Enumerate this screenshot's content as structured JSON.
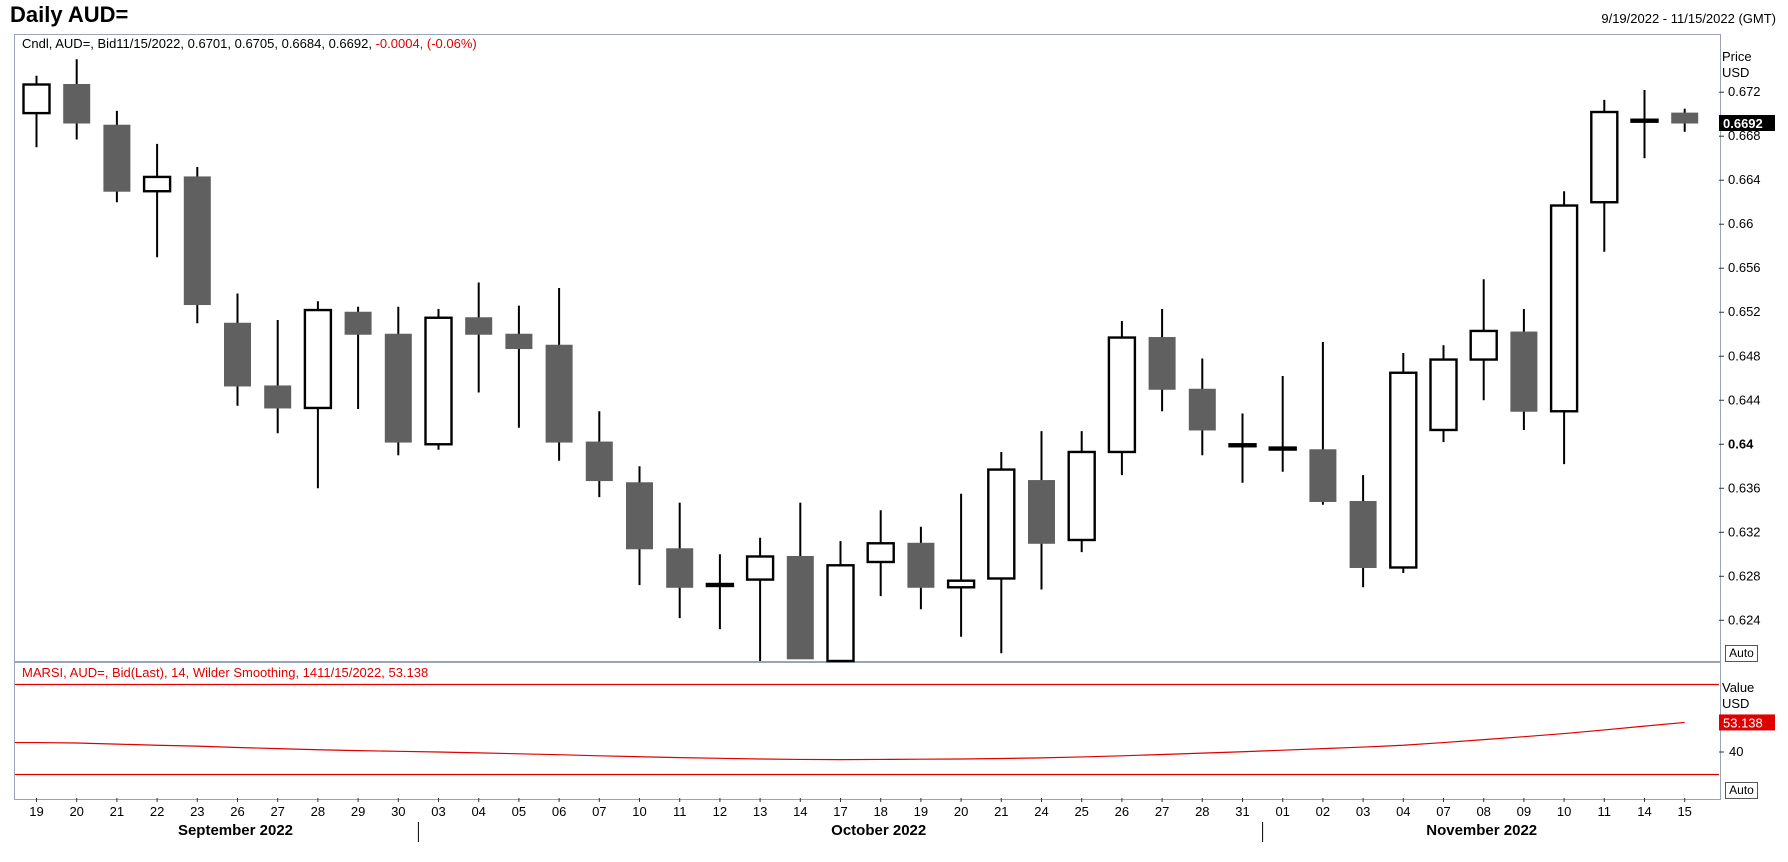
{
  "header": {
    "title": "Daily AUD=",
    "date_range": "9/19/2022 - 11/15/2022 (GMT)"
  },
  "price_panel": {
    "legend_prefix": "Cndl, AUD=, Bid11/15/2022, 0.6701, 0.6705, 0.6684, 0.6692,",
    "legend_change": "-0.0004, (-0.06%)",
    "axis_title": "Price",
    "axis_unit": "USD",
    "last_value_label": "0.6692",
    "auto_label": "Auto"
  },
  "indicator_panel": {
    "legend": "MARSI, AUD=, Bid(Last),  14, Wilder Smoothing, 1411/15/2022, 53.138",
    "axis_title": "Value",
    "axis_unit": "USD",
    "last_value_label": "53.138",
    "tick_label": "40",
    "auto_label": "Auto"
  },
  "colors": {
    "down_candle": "#606060",
    "up_candle": "#ffffff",
    "indicator_line": "#e00000",
    "last_price_badge": "#000000",
    "last_indicator_badge": "#e00000"
  },
  "chart_data": {
    "type": "candlestick",
    "dates": [
      "19",
      "20",
      "21",
      "22",
      "23",
      "26",
      "27",
      "28",
      "29",
      "30",
      "03",
      "04",
      "05",
      "06",
      "07",
      "10",
      "11",
      "12",
      "13",
      "14",
      "17",
      "18",
      "19",
      "20",
      "21",
      "24",
      "25",
      "26",
      "27",
      "28",
      "31",
      "01",
      "02",
      "03",
      "04",
      "07",
      "08",
      "09",
      "10",
      "11",
      "14",
      "15"
    ],
    "month_labels": [
      {
        "label": "September 2022",
        "center_index": 5
      },
      {
        "label": "October 2022",
        "center_index": 21
      },
      {
        "label": "November 2022",
        "center_index": 36
      }
    ],
    "month_separators_after": [
      9,
      30
    ],
    "ylim": [
      0.6203,
      0.6772
    ],
    "yticks": [
      0.672,
      0.668,
      0.664,
      0.66,
      0.656,
      0.652,
      0.648,
      0.644,
      0.64,
      0.636,
      0.632,
      0.628,
      0.624
    ],
    "ytick_labels": [
      "0.672",
      "0.668",
      "0.664",
      "0.66",
      "0.656",
      "0.652",
      "0.648",
      "0.644",
      "0.64",
      "0.636",
      "0.632",
      "0.628",
      "0.624"
    ],
    "candles": [
      {
        "o": 0.6701,
        "h": 0.6735,
        "l": 0.667,
        "c": 0.6727
      },
      {
        "o": 0.6727,
        "h": 0.675,
        "l": 0.6677,
        "c": 0.6692
      },
      {
        "o": 0.669,
        "h": 0.6703,
        "l": 0.662,
        "c": 0.663
      },
      {
        "o": 0.663,
        "h": 0.6673,
        "l": 0.657,
        "c": 0.6643
      },
      {
        "o": 0.6643,
        "h": 0.6652,
        "l": 0.651,
        "c": 0.6527
      },
      {
        "o": 0.651,
        "h": 0.6537,
        "l": 0.6435,
        "c": 0.6453
      },
      {
        "o": 0.6453,
        "h": 0.6513,
        "l": 0.641,
        "c": 0.6433
      },
      {
        "o": 0.6433,
        "h": 0.653,
        "l": 0.636,
        "c": 0.6522
      },
      {
        "o": 0.652,
        "h": 0.6525,
        "l": 0.6432,
        "c": 0.65
      },
      {
        "o": 0.65,
        "h": 0.6525,
        "l": 0.639,
        "c": 0.6402
      },
      {
        "o": 0.64,
        "h": 0.6523,
        "l": 0.6395,
        "c": 0.6515
      },
      {
        "o": 0.6515,
        "h": 0.6547,
        "l": 0.6447,
        "c": 0.65
      },
      {
        "o": 0.65,
        "h": 0.6526,
        "l": 0.6415,
        "c": 0.6487
      },
      {
        "o": 0.649,
        "h": 0.6542,
        "l": 0.6385,
        "c": 0.6402
      },
      {
        "o": 0.6402,
        "h": 0.643,
        "l": 0.6352,
        "c": 0.6367
      },
      {
        "o": 0.6365,
        "h": 0.638,
        "l": 0.6272,
        "c": 0.6305
      },
      {
        "o": 0.6305,
        "h": 0.6347,
        "l": 0.6242,
        "c": 0.627
      },
      {
        "o": 0.6273,
        "h": 0.63,
        "l": 0.6232,
        "c": 0.6273
      },
      {
        "o": 0.6277,
        "h": 0.6315,
        "l": 0.6203,
        "c": 0.6298
      },
      {
        "o": 0.6298,
        "h": 0.6347,
        "l": 0.6205,
        "c": 0.6205
      },
      {
        "o": 0.6203,
        "h": 0.6312,
        "l": 0.6203,
        "c": 0.629
      },
      {
        "o": 0.6293,
        "h": 0.634,
        "l": 0.6262,
        "c": 0.631
      },
      {
        "o": 0.631,
        "h": 0.6325,
        "l": 0.625,
        "c": 0.627
      },
      {
        "o": 0.627,
        "h": 0.6355,
        "l": 0.6225,
        "c": 0.6276
      },
      {
        "o": 0.6278,
        "h": 0.6393,
        "l": 0.621,
        "c": 0.6377
      },
      {
        "o": 0.6367,
        "h": 0.6412,
        "l": 0.6268,
        "c": 0.631
      },
      {
        "o": 0.6313,
        "h": 0.6412,
        "l": 0.6302,
        "c": 0.6393
      },
      {
        "o": 0.6393,
        "h": 0.6512,
        "l": 0.6372,
        "c": 0.6497
      },
      {
        "o": 0.6497,
        "h": 0.6523,
        "l": 0.643,
        "c": 0.645
      },
      {
        "o": 0.645,
        "h": 0.6478,
        "l": 0.639,
        "c": 0.6413
      },
      {
        "o": 0.64,
        "h": 0.6428,
        "l": 0.6365,
        "c": 0.64
      },
      {
        "o": 0.6397,
        "h": 0.6462,
        "l": 0.6375,
        "c": 0.6397
      },
      {
        "o": 0.6395,
        "h": 0.6493,
        "l": 0.6345,
        "c": 0.6348
      },
      {
        "o": 0.6348,
        "h": 0.6372,
        "l": 0.627,
        "c": 0.6288
      },
      {
        "o": 0.6288,
        "h": 0.6483,
        "l": 0.6283,
        "c": 0.6465
      },
      {
        "o": 0.6413,
        "h": 0.649,
        "l": 0.6402,
        "c": 0.6477
      },
      {
        "o": 0.6477,
        "h": 0.655,
        "l": 0.644,
        "c": 0.6503
      },
      {
        "o": 0.6502,
        "h": 0.6523,
        "l": 0.6413,
        "c": 0.643
      },
      {
        "o": 0.643,
        "h": 0.663,
        "l": 0.6382,
        "c": 0.6617
      },
      {
        "o": 0.662,
        "h": 0.6713,
        "l": 0.6575,
        "c": 0.6702
      },
      {
        "o": 0.6695,
        "h": 0.6722,
        "l": 0.666,
        "c": 0.6695
      },
      {
        "o": 0.6701,
        "h": 0.6705,
        "l": 0.6684,
        "c": 0.6692
      }
    ],
    "indicator": {
      "name": "MARSI",
      "ylim": [
        20,
        80
      ],
      "upper_band": 70,
      "lower_band": 30,
      "tick": 40,
      "values": [
        44.2,
        44.0,
        43.5,
        43.0,
        42.6,
        42.0,
        41.5,
        41.0,
        40.6,
        40.3,
        40.0,
        39.6,
        39.2,
        38.8,
        38.3,
        37.9,
        37.5,
        37.2,
        36.9,
        36.7,
        36.6,
        36.7,
        36.8,
        36.9,
        37.1,
        37.4,
        37.8,
        38.3,
        38.9,
        39.5,
        40.1,
        40.8,
        41.5,
        42.2,
        43.0,
        44.2,
        45.5,
        46.8,
        48.2,
        49.8,
        51.5,
        53.138
      ]
    }
  }
}
